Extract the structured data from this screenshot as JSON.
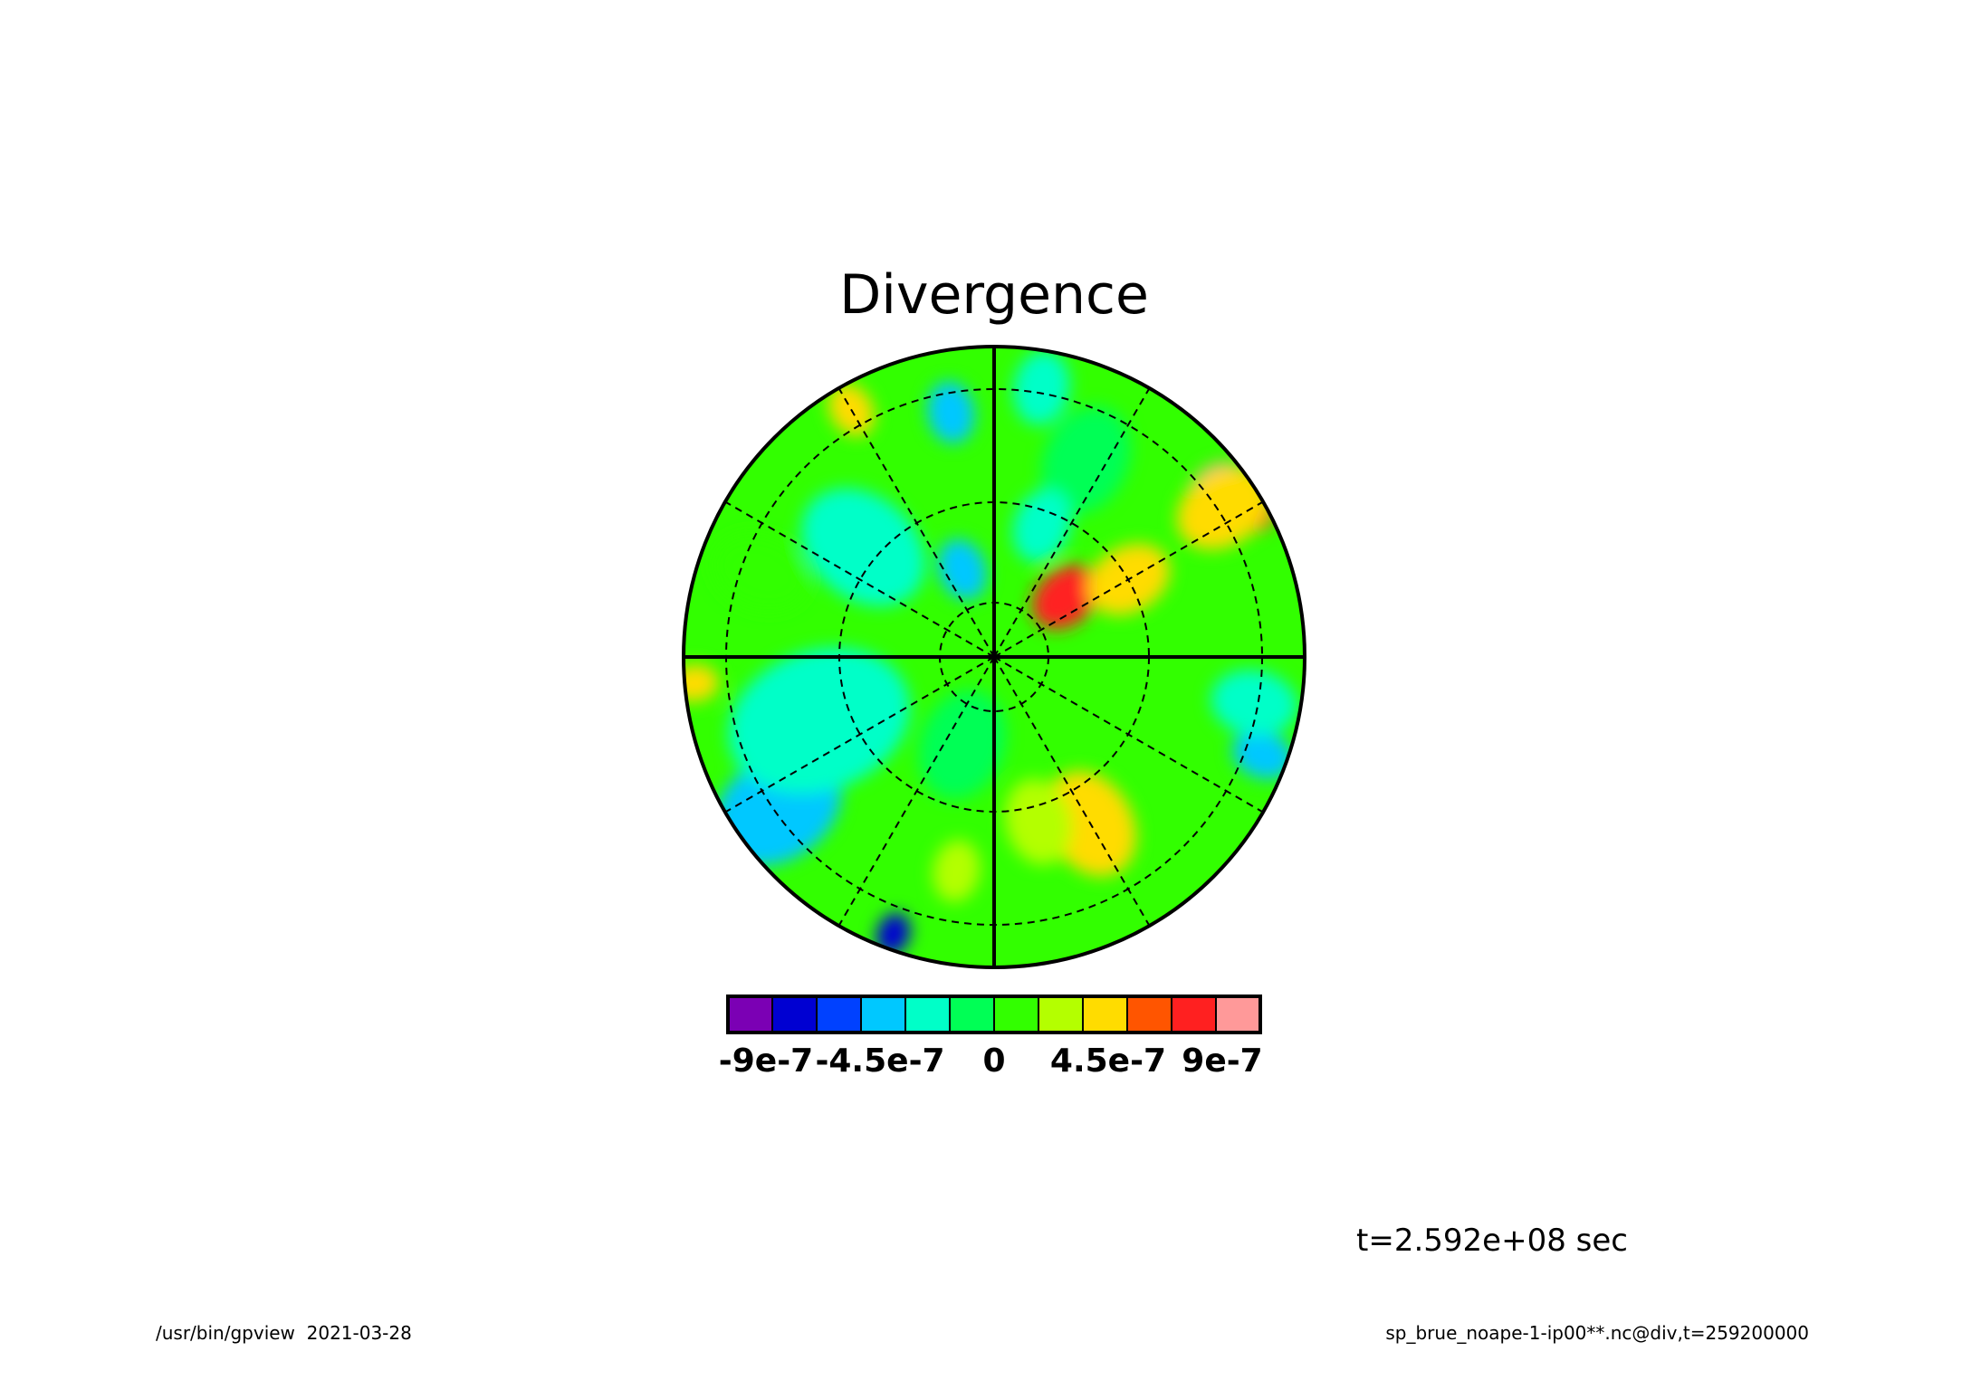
{
  "chart_data": {
    "type": "heatmap",
    "projection": "polar-stereographic",
    "title": "Divergence",
    "time_label": "t=2.592e+08 sec",
    "colorbar": {
      "colors": [
        "#7b00b4",
        "#0000d2",
        "#0041ff",
        "#00c8ff",
        "#00ffc8",
        "#00ff55",
        "#32ff00",
        "#b4ff00",
        "#ffdc00",
        "#ff5500",
        "#ff2020",
        "#ff9999"
      ],
      "tick_labels": [
        "-9e-7",
        "-4.5e-7",
        "0",
        "4.5e-7",
        "9e-7"
      ],
      "tick_values": [
        -9e-07,
        -4.5e-07,
        0,
        4.5e-07,
        9e-07
      ],
      "range": [
        -1.05e-06,
        1.05e-06
      ]
    },
    "background_level": "#32ff00",
    "blobs": [
      {
        "r": 0.3,
        "theta": 40,
        "level": 11,
        "size": 0.12
      },
      {
        "r": 0.9,
        "theta": 37,
        "level": 12,
        "size": 0.1
      },
      {
        "r": 0.96,
        "theta": 28,
        "level": 11,
        "size": 0.06
      },
      {
        "r": 0.88,
        "theta": 33,
        "level": 9,
        "size": 0.16
      },
      {
        "r": 0.5,
        "theta": 30,
        "level": 9,
        "size": 0.14
      },
      {
        "r": 0.62,
        "theta": 300,
        "level": 9,
        "size": 0.18
      },
      {
        "r": 0.55,
        "theta": 285,
        "level": 8,
        "size": 0.14
      },
      {
        "r": 0.85,
        "theta": 220,
        "level": 2,
        "size": 0.08
      },
      {
        "r": 0.95,
        "theta": 250,
        "level": 2,
        "size": 0.07
      },
      {
        "r": 0.85,
        "theta": 215,
        "level": 4,
        "size": 0.22
      },
      {
        "r": 0.6,
        "theta": 200,
        "level": 5,
        "size": 0.3
      },
      {
        "r": 0.3,
        "theta": 110,
        "level": 4,
        "size": 0.1
      },
      {
        "r": 0.55,
        "theta": 140,
        "level": 5,
        "size": 0.22
      },
      {
        "r": 0.8,
        "theta": 100,
        "level": 4,
        "size": 0.1
      },
      {
        "r": 0.88,
        "theta": 80,
        "level": 5,
        "size": 0.12
      },
      {
        "r": 0.92,
        "theta": 340,
        "level": 4,
        "size": 0.1
      },
      {
        "r": 0.85,
        "theta": 350,
        "level": 5,
        "size": 0.14
      },
      {
        "r": 0.97,
        "theta": 185,
        "level": 9,
        "size": 0.08
      },
      {
        "r": 0.92,
        "theta": 120,
        "level": 9,
        "size": 0.09
      },
      {
        "r": 0.8,
        "theta": 160,
        "level": 7,
        "size": 0.16
      },
      {
        "r": 0.3,
        "theta": 250,
        "level": 6,
        "size": 0.18
      },
      {
        "r": 0.7,
        "theta": 260,
        "level": 8,
        "size": 0.1
      },
      {
        "r": 0.7,
        "theta": 65,
        "level": 6,
        "size": 0.18
      },
      {
        "r": 0.45,
        "theta": 70,
        "level": 5,
        "size": 0.12
      }
    ]
  },
  "footer": {
    "left": "/usr/bin/gpview  2021-03-28",
    "right": "sp_brue_noape-1-ip00**.nc@div,t=259200000"
  }
}
